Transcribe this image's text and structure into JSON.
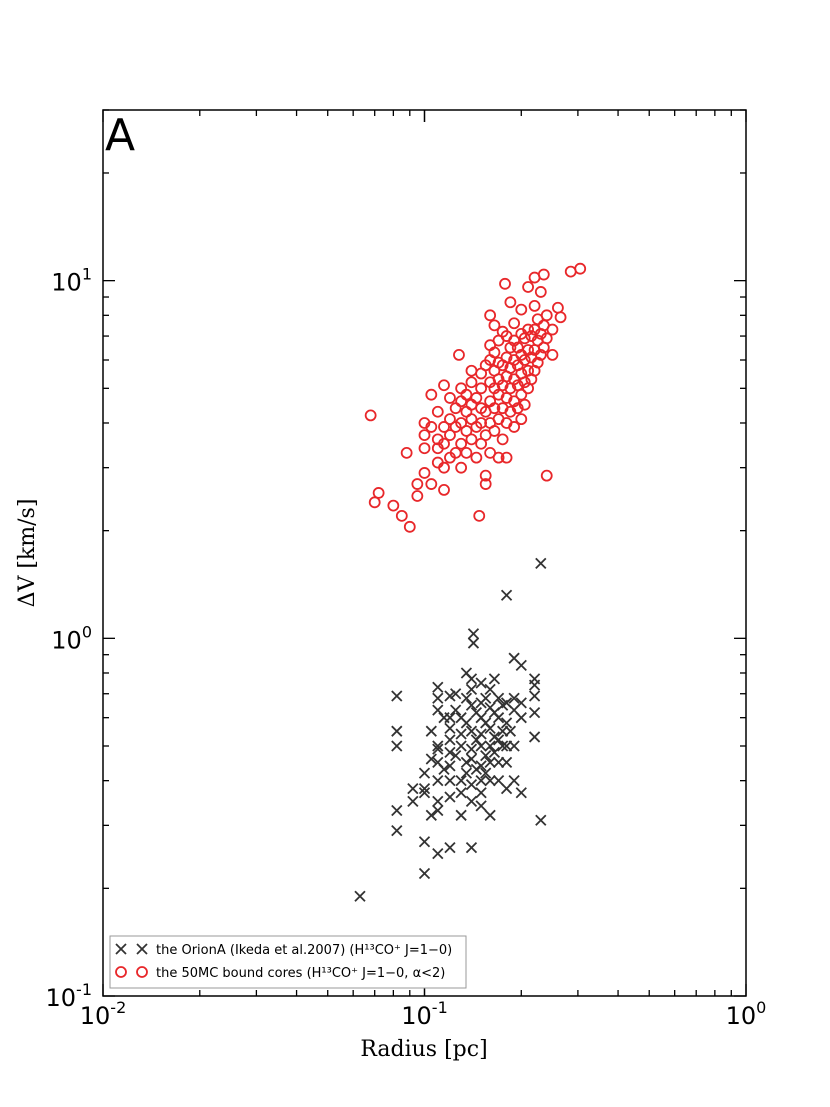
{
  "chart_data": {
    "type": "scatter",
    "panel_label": "A",
    "xlabel": "Radius [pc]",
    "ylabel": "ΔV [km/s]",
    "x_scale": "log",
    "y_scale": "log",
    "xlim": [
      0.01,
      1
    ],
    "ylim": [
      0.1,
      30
    ],
    "x_ticks": [
      {
        "base": "10",
        "exp": "-2"
      },
      {
        "base": "10",
        "exp": "-1"
      },
      {
        "base": "10",
        "exp": "0"
      }
    ],
    "y_ticks": [
      {
        "base": "10",
        "exp": "-1"
      },
      {
        "base": "10",
        "exp": "0"
      },
      {
        "base": "10",
        "exp": "1"
      }
    ],
    "legend": {
      "position": "lower-left",
      "entries": [
        {
          "label": "the OrionA (Ikeda et al.2007) (H¹³CO⁺ J=1−0)",
          "marker": "x",
          "color": "#333333"
        },
        {
          "label": "the 50MC bound cores (H¹³CO⁺ J=1−0, α<2)",
          "marker": "o",
          "color": "#e8272a"
        }
      ]
    },
    "series": [
      {
        "name": "the OrionA (Ikeda et al.2007) (H¹³CO⁺ J=1−0)",
        "marker": "x",
        "color": "#333333",
        "points": [
          [
            0.063,
            0.19
          ],
          [
            0.082,
            0.69
          ],
          [
            0.082,
            0.55
          ],
          [
            0.082,
            0.5
          ],
          [
            0.082,
            0.33
          ],
          [
            0.082,
            0.29
          ],
          [
            0.092,
            0.38
          ],
          [
            0.092,
            0.35
          ],
          [
            0.1,
            0.38
          ],
          [
            0.1,
            0.37
          ],
          [
            0.1,
            0.42
          ],
          [
            0.1,
            0.27
          ],
          [
            0.1,
            0.22
          ],
          [
            0.105,
            0.46
          ],
          [
            0.105,
            0.55
          ],
          [
            0.105,
            0.32
          ],
          [
            0.11,
            0.73
          ],
          [
            0.11,
            0.68
          ],
          [
            0.11,
            0.63
          ],
          [
            0.11,
            0.5
          ],
          [
            0.11,
            0.49
          ],
          [
            0.11,
            0.45
          ],
          [
            0.11,
            0.4
          ],
          [
            0.11,
            0.35
          ],
          [
            0.11,
            0.33
          ],
          [
            0.11,
            0.25
          ],
          [
            0.115,
            0.6
          ],
          [
            0.115,
            0.43
          ],
          [
            0.12,
            0.69
          ],
          [
            0.12,
            0.6
          ],
          [
            0.12,
            0.56
          ],
          [
            0.12,
            0.52
          ],
          [
            0.12,
            0.48
          ],
          [
            0.12,
            0.44
          ],
          [
            0.12,
            0.4
          ],
          [
            0.12,
            0.36
          ],
          [
            0.12,
            0.26
          ],
          [
            0.125,
            0.7
          ],
          [
            0.125,
            0.63
          ],
          [
            0.125,
            0.47
          ],
          [
            0.13,
            0.6
          ],
          [
            0.13,
            0.54
          ],
          [
            0.13,
            0.5
          ],
          [
            0.13,
            0.4
          ],
          [
            0.13,
            0.37
          ],
          [
            0.13,
            0.32
          ],
          [
            0.135,
            0.8
          ],
          [
            0.135,
            0.68
          ],
          [
            0.135,
            0.58
          ],
          [
            0.135,
            0.45
          ],
          [
            0.135,
            0.42
          ],
          [
            0.14,
            0.77
          ],
          [
            0.14,
            0.72
          ],
          [
            0.14,
            0.65
          ],
          [
            0.14,
            0.55
          ],
          [
            0.14,
            0.49
          ],
          [
            0.14,
            0.46
          ],
          [
            0.14,
            0.39
          ],
          [
            0.14,
            0.35
          ],
          [
            0.14,
            0.26
          ],
          [
            0.142,
            1.03
          ],
          [
            0.142,
            0.97
          ],
          [
            0.145,
            0.62
          ],
          [
            0.145,
            0.52
          ],
          [
            0.145,
            0.43
          ],
          [
            0.15,
            0.75
          ],
          [
            0.15,
            0.66
          ],
          [
            0.15,
            0.6
          ],
          [
            0.15,
            0.54
          ],
          [
            0.15,
            0.5
          ],
          [
            0.15,
            0.44
          ],
          [
            0.15,
            0.4
          ],
          [
            0.15,
            0.37
          ],
          [
            0.15,
            0.34
          ],
          [
            0.155,
            0.68
          ],
          [
            0.155,
            0.58
          ],
          [
            0.155,
            0.47
          ],
          [
            0.155,
            0.42
          ],
          [
            0.16,
            0.72
          ],
          [
            0.16,
            0.64
          ],
          [
            0.16,
            0.56
          ],
          [
            0.16,
            0.5
          ],
          [
            0.16,
            0.45
          ],
          [
            0.16,
            0.4
          ],
          [
            0.16,
            0.32
          ],
          [
            0.165,
            0.77
          ],
          [
            0.165,
            0.62
          ],
          [
            0.165,
            0.53
          ],
          [
            0.165,
            0.48
          ],
          [
            0.17,
            0.68
          ],
          [
            0.17,
            0.6
          ],
          [
            0.17,
            0.52
          ],
          [
            0.17,
            0.45
          ],
          [
            0.17,
            0.4
          ],
          [
            0.175,
            0.65
          ],
          [
            0.175,
            0.55
          ],
          [
            0.175,
            0.5
          ],
          [
            0.18,
            1.32
          ],
          [
            0.18,
            0.66
          ],
          [
            0.18,
            0.58
          ],
          [
            0.18,
            0.5
          ],
          [
            0.18,
            0.45
          ],
          [
            0.18,
            0.38
          ],
          [
            0.185,
            0.55
          ],
          [
            0.19,
            0.88
          ],
          [
            0.19,
            0.68
          ],
          [
            0.19,
            0.63
          ],
          [
            0.19,
            0.5
          ],
          [
            0.19,
            0.4
          ],
          [
            0.2,
            0.84
          ],
          [
            0.2,
            0.66
          ],
          [
            0.2,
            0.6
          ],
          [
            0.2,
            0.37
          ],
          [
            0.22,
            0.77
          ],
          [
            0.22,
            0.74
          ],
          [
            0.22,
            0.69
          ],
          [
            0.22,
            0.62
          ],
          [
            0.22,
            0.53
          ],
          [
            0.23,
            1.62
          ],
          [
            0.23,
            0.31
          ]
        ]
      },
      {
        "name": "the 50MC bound cores (H¹³CO⁺ J=1−0, α<2)",
        "marker": "o",
        "color": "#e8272a",
        "points": [
          [
            0.068,
            4.2
          ],
          [
            0.07,
            2.4
          ],
          [
            0.072,
            2.55
          ],
          [
            0.08,
            2.35
          ],
          [
            0.085,
            2.2
          ],
          [
            0.09,
            2.05
          ],
          [
            0.088,
            3.3
          ],
          [
            0.095,
            2.7
          ],
          [
            0.095,
            2.5
          ],
          [
            0.1,
            2.9
          ],
          [
            0.1,
            3.4
          ],
          [
            0.1,
            3.7
          ],
          [
            0.1,
            4.0
          ],
          [
            0.105,
            2.7
          ],
          [
            0.105,
            3.9
          ],
          [
            0.105,
            4.8
          ],
          [
            0.11,
            3.1
          ],
          [
            0.11,
            3.4
          ],
          [
            0.11,
            3.6
          ],
          [
            0.11,
            4.3
          ],
          [
            0.115,
            2.6
          ],
          [
            0.115,
            3.0
          ],
          [
            0.115,
            3.5
          ],
          [
            0.115,
            3.9
          ],
          [
            0.115,
            5.1
          ],
          [
            0.12,
            3.2
          ],
          [
            0.12,
            3.7
          ],
          [
            0.12,
            4.1
          ],
          [
            0.12,
            4.7
          ],
          [
            0.125,
            3.3
          ],
          [
            0.125,
            3.9
          ],
          [
            0.125,
            4.4
          ],
          [
            0.128,
            6.2
          ],
          [
            0.13,
            3.0
          ],
          [
            0.13,
            3.5
          ],
          [
            0.13,
            4.0
          ],
          [
            0.13,
            4.6
          ],
          [
            0.13,
            5.0
          ],
          [
            0.135,
            3.3
          ],
          [
            0.135,
            3.8
          ],
          [
            0.135,
            4.3
          ],
          [
            0.135,
            4.8
          ],
          [
            0.14,
            3.6
          ],
          [
            0.14,
            4.1
          ],
          [
            0.14,
            4.5
          ],
          [
            0.14,
            5.2
          ],
          [
            0.14,
            5.6
          ],
          [
            0.145,
            3.2
          ],
          [
            0.145,
            3.9
          ],
          [
            0.145,
            4.7
          ],
          [
            0.148,
            2.2
          ],
          [
            0.15,
            3.5
          ],
          [
            0.15,
            4.0
          ],
          [
            0.15,
            4.4
          ],
          [
            0.15,
            5.0
          ],
          [
            0.15,
            5.5
          ],
          [
            0.155,
            2.7
          ],
          [
            0.155,
            2.85
          ],
          [
            0.155,
            3.7
          ],
          [
            0.155,
            4.3
          ],
          [
            0.155,
            5.8
          ],
          [
            0.16,
            3.3
          ],
          [
            0.16,
            4.0
          ],
          [
            0.16,
            4.6
          ],
          [
            0.16,
            5.2
          ],
          [
            0.16,
            6.0
          ],
          [
            0.16,
            6.6
          ],
          [
            0.16,
            8.0
          ],
          [
            0.165,
            3.8
          ],
          [
            0.165,
            4.4
          ],
          [
            0.165,
            5.0
          ],
          [
            0.165,
            5.6
          ],
          [
            0.165,
            6.3
          ],
          [
            0.165,
            7.5
          ],
          [
            0.17,
            3.2
          ],
          [
            0.17,
            4.1
          ],
          [
            0.17,
            4.8
          ],
          [
            0.17,
            5.3
          ],
          [
            0.17,
            5.9
          ],
          [
            0.17,
            6.8
          ],
          [
            0.175,
            3.6
          ],
          [
            0.175,
            4.4
          ],
          [
            0.175,
            5.1
          ],
          [
            0.175,
            5.8
          ],
          [
            0.175,
            7.2
          ],
          [
            0.178,
            9.8
          ],
          [
            0.18,
            3.2
          ],
          [
            0.18,
            4.0
          ],
          [
            0.18,
            4.7
          ],
          [
            0.18,
            5.4
          ],
          [
            0.18,
            6.1
          ],
          [
            0.18,
            7.0
          ],
          [
            0.185,
            4.3
          ],
          [
            0.185,
            5.0
          ],
          [
            0.185,
            5.7
          ],
          [
            0.185,
            6.5
          ],
          [
            0.185,
            8.7
          ],
          [
            0.19,
            3.9
          ],
          [
            0.19,
            4.6
          ],
          [
            0.19,
            5.3
          ],
          [
            0.19,
            6.0
          ],
          [
            0.19,
            6.8
          ],
          [
            0.19,
            7.6
          ],
          [
            0.195,
            4.4
          ],
          [
            0.195,
            5.1
          ],
          [
            0.195,
            5.8
          ],
          [
            0.195,
            6.5
          ],
          [
            0.2,
            4.1
          ],
          [
            0.2,
            4.8
          ],
          [
            0.2,
            5.5
          ],
          [
            0.2,
            6.2
          ],
          [
            0.2,
            7.1
          ],
          [
            0.2,
            8.3
          ],
          [
            0.205,
            4.5
          ],
          [
            0.205,
            5.2
          ],
          [
            0.205,
            6.0
          ],
          [
            0.205,
            6.9
          ],
          [
            0.21,
            5.0
          ],
          [
            0.21,
            5.6
          ],
          [
            0.21,
            6.4
          ],
          [
            0.21,
            7.3
          ],
          [
            0.21,
            9.6
          ],
          [
            0.215,
            5.3
          ],
          [
            0.215,
            6.1
          ],
          [
            0.215,
            7.0
          ],
          [
            0.22,
            5.6
          ],
          [
            0.22,
            6.4
          ],
          [
            0.22,
            7.3
          ],
          [
            0.22,
            8.5
          ],
          [
            0.22,
            10.2
          ],
          [
            0.225,
            5.9
          ],
          [
            0.225,
            6.8
          ],
          [
            0.225,
            7.8
          ],
          [
            0.23,
            6.2
          ],
          [
            0.23,
            7.1
          ],
          [
            0.23,
            9.3
          ],
          [
            0.235,
            6.5
          ],
          [
            0.235,
            7.5
          ],
          [
            0.235,
            10.4
          ],
          [
            0.24,
            2.85
          ],
          [
            0.24,
            6.9
          ],
          [
            0.24,
            8.0
          ],
          [
            0.25,
            7.3
          ],
          [
            0.25,
            6.2
          ],
          [
            0.26,
            8.4
          ],
          [
            0.265,
            7.9
          ],
          [
            0.285,
            10.6
          ],
          [
            0.305,
            10.8
          ]
        ]
      }
    ]
  }
}
